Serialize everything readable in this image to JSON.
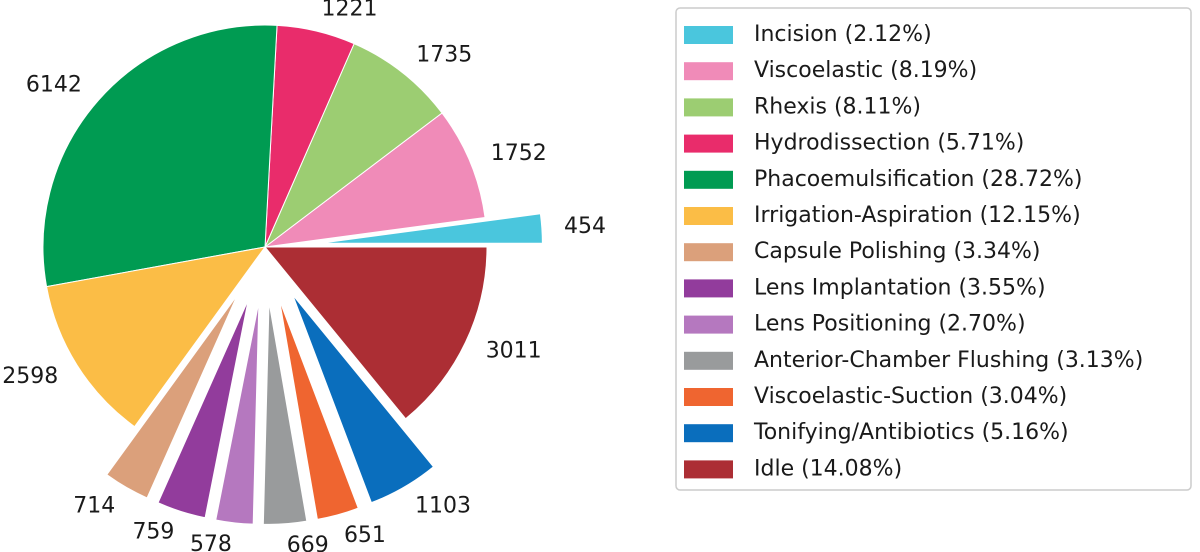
{
  "chart_data": {
    "type": "pie",
    "title": "",
    "legend_position": "right",
    "start_angle_deg": 0,
    "direction": "counterclockwise",
    "slices": [
      {
        "name": "Incision",
        "value": 454,
        "legend": "Incision (2.12%)",
        "color": "#4ac6dd",
        "explode": true
      },
      {
        "name": "Viscoelastic",
        "value": 1752,
        "legend": "Viscoelastic (8.19%)",
        "color": "#f08bb8",
        "explode": false
      },
      {
        "name": "Rhexis",
        "value": 1735,
        "legend": "Rhexis (8.11%)",
        "color": "#9ccd72",
        "explode": false
      },
      {
        "name": "Hydrodissection",
        "value": 1221,
        "legend": "Hydrodissection (5.71%)",
        "color": "#e92c6b",
        "explode": false
      },
      {
        "name": "Phacoemulsification",
        "value": 6142,
        "legend": "Phacoemulsification (28.72%)",
        "color": "#009b52",
        "explode": false
      },
      {
        "name": "Irrigation-Aspiration",
        "value": 2598,
        "legend": "Irrigation-Aspiration (12.15%)",
        "color": "#fbbd46",
        "explode": false
      },
      {
        "name": "Capsule Polishing",
        "value": 714,
        "legend": "Capsule Polishing (3.34%)",
        "color": "#dba07b",
        "explode": true
      },
      {
        "name": "Lens Implantation",
        "value": 759,
        "legend": "Lens Implantation (3.55%)",
        "color": "#923c9c",
        "explode": true
      },
      {
        "name": "Lens Positioning",
        "value": 578,
        "legend": "Lens Positioning (2.70%)",
        "color": "#b578bf",
        "explode": true
      },
      {
        "name": "Anterior-Chamber Flushing",
        "value": 669,
        "legend": "Anterior-Chamber Flushing (3.13%)",
        "color": "#999b9c",
        "explode": true
      },
      {
        "name": "Viscoelastic-Suction",
        "value": 651,
        "legend": "Viscoelastic-Suction (3.04%)",
        "color": "#ef6530",
        "explode": true
      },
      {
        "name": "Tonifying/Antibiotics",
        "value": 1103,
        "legend": "Tonifying/Antibiotics (5.16%)",
        "color": "#0a6ebd",
        "explode": true
      },
      {
        "name": "Idle",
        "value": 3011,
        "legend": "Idle (14.08%)",
        "color": "#ac2e34",
        "explode": false
      }
    ]
  }
}
